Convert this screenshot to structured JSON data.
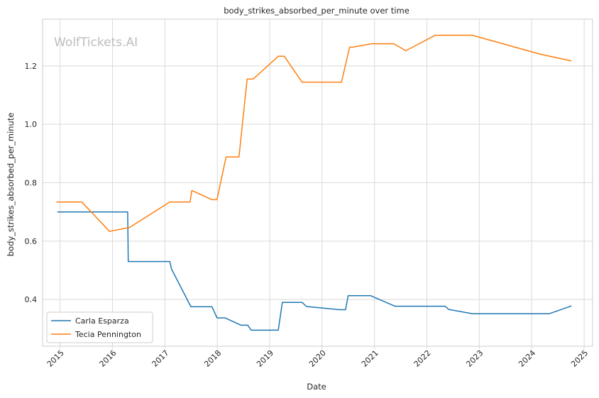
{
  "watermark": "WolfTickets.AI",
  "chart_data": {
    "type": "line",
    "title": "body_strikes_absorbed_per_minute over time",
    "xlabel": "Date",
    "ylabel": "body_strikes_absorbed_per_minute",
    "x_ticks": [
      "2015",
      "2016",
      "2017",
      "2018",
      "2019",
      "2020",
      "2021",
      "2022",
      "2023",
      "2024",
      "2025"
    ],
    "y_ticks": [
      "0.4",
      "0.6",
      "0.8",
      "1.0",
      "1.2"
    ],
    "xlim": [
      "2014-09-01",
      "2025-03-01"
    ],
    "ylim": [
      0.24,
      1.36
    ],
    "grid": true,
    "legend": "lower-left",
    "series": [
      {
        "name": "Carla Esparza",
        "color": "#1f77b4",
        "points": [
          [
            "2014-12-13",
            0.7
          ],
          [
            "2016-04-16",
            0.7
          ],
          [
            "2016-04-20",
            0.53
          ],
          [
            "2017-02-04",
            0.53
          ],
          [
            "2017-02-15",
            0.505
          ],
          [
            "2017-07-01",
            0.375
          ],
          [
            "2017-11-25",
            0.375
          ],
          [
            "2017-12-30",
            0.337
          ],
          [
            "2018-02-24",
            0.337
          ],
          [
            "2018-06-15",
            0.312
          ],
          [
            "2018-08-01",
            0.312
          ],
          [
            "2018-08-25",
            0.295
          ],
          [
            "2019-03-02",
            0.295
          ],
          [
            "2019-03-30",
            0.39
          ],
          [
            "2019-08-15",
            0.39
          ],
          [
            "2019-09-15",
            0.376
          ],
          [
            "2020-05-01",
            0.365
          ],
          [
            "2020-06-13",
            0.365
          ],
          [
            "2020-07-01",
            0.413
          ],
          [
            "2020-12-05",
            0.413
          ],
          [
            "2021-05-22",
            0.377
          ],
          [
            "2022-05-07",
            0.377
          ],
          [
            "2022-06-01",
            0.366
          ],
          [
            "2022-11-15",
            0.351
          ],
          [
            "2024-05-01",
            0.351
          ],
          [
            "2024-10-05",
            0.378
          ]
        ]
      },
      {
        "name": "Tecia Pennington",
        "color": "#ff7f0e",
        "points": [
          [
            "2014-12-06",
            0.734
          ],
          [
            "2015-06-01",
            0.734
          ],
          [
            "2015-12-12",
            0.633
          ],
          [
            "2016-04-30",
            0.647
          ],
          [
            "2017-02-04",
            0.734
          ],
          [
            "2017-06-25",
            0.734
          ],
          [
            "2017-07-07",
            0.773
          ],
          [
            "2017-11-25",
            0.742
          ],
          [
            "2017-12-30",
            0.742
          ],
          [
            "2018-03-03",
            0.888
          ],
          [
            "2018-06-01",
            0.888
          ],
          [
            "2018-07-28",
            1.155
          ],
          [
            "2018-09-08",
            1.155
          ],
          [
            "2019-03-02",
            1.233
          ],
          [
            "2019-04-13",
            1.233
          ],
          [
            "2019-08-15",
            1.144
          ],
          [
            "2020-05-15",
            1.144
          ],
          [
            "2020-07-11",
            1.264
          ],
          [
            "2020-08-01",
            1.264
          ],
          [
            "2020-12-12",
            1.276
          ],
          [
            "2021-05-15",
            1.276
          ],
          [
            "2021-08-07",
            1.252
          ],
          [
            "2022-03-01",
            1.305
          ],
          [
            "2022-11-12",
            1.305
          ],
          [
            "2024-03-01",
            1.24
          ],
          [
            "2024-10-05",
            1.217
          ]
        ]
      }
    ]
  }
}
